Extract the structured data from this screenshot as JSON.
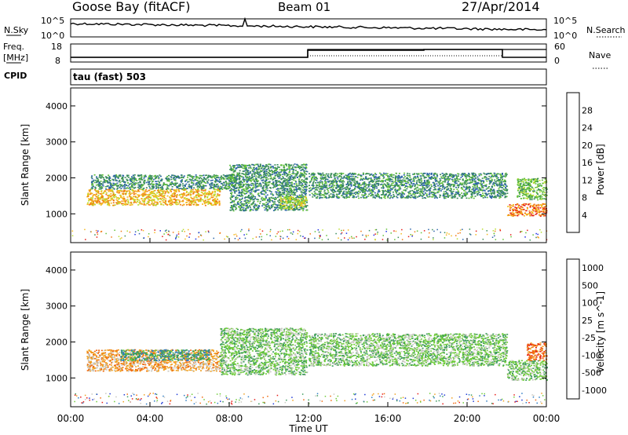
{
  "header": {
    "station": "Goose Bay (fitACF)",
    "beam": "Beam 01",
    "date": "27/Apr/2014"
  },
  "noise_panel": {
    "left_label": "N.Sky",
    "right_label": "N.Search",
    "left_ticks": [
      "10^5",
      "10^0"
    ],
    "right_ticks": [
      "10^5",
      "10^0"
    ]
  },
  "freq_panel": {
    "left_label_line1": "Freq.",
    "left_label_line2": "[MHz]",
    "right_label": "Nave",
    "left_ticks": [
      "18",
      "8"
    ],
    "right_ticks": [
      "60",
      "0"
    ]
  },
  "cpid": {
    "label": "CPID",
    "value": "tau (fast) 503"
  },
  "x_axis": {
    "label": "Time UT",
    "ticks": [
      "00:00",
      "04:00",
      "08:00",
      "12:00",
      "16:00",
      "20:00",
      "00:00"
    ]
  },
  "chart_data": [
    {
      "type": "heatmap",
      "title": "",
      "xlabel": "Time UT",
      "ylabel": "Slant Range [km]",
      "xlim": [
        0,
        24
      ],
      "ylim": [
        200,
        4500
      ],
      "yticks": [
        "1000",
        "2000",
        "3000",
        "4000"
      ],
      "colorbar": {
        "label": "Power [dB]",
        "ticks": [
          "4",
          "8",
          "12",
          "16",
          "20",
          "24",
          "28"
        ],
        "range": [
          0,
          32
        ],
        "colors": [
          "#1f2fe6",
          "#2c64a8",
          "#3a8c5a",
          "#62c03a",
          "#b9dd2e",
          "#f4b81d",
          "#f07a12",
          "#e51c17"
        ]
      },
      "bands": [
        {
          "t0": 0.8,
          "t1": 7.5,
          "r0": 1250,
          "r1": 1700,
          "value": 22
        },
        {
          "t0": 1.0,
          "t1": 8.5,
          "r0": 1700,
          "r1": 2100,
          "value": 10
        },
        {
          "t0": 8.0,
          "t1": 11.9,
          "r0": 1100,
          "r1": 2400,
          "value": 8
        },
        {
          "t0": 10.5,
          "t1": 11.9,
          "r0": 1150,
          "r1": 1500,
          "value": 18
        },
        {
          "t0": 12.0,
          "t1": 22.0,
          "r0": 1450,
          "r1": 2150,
          "value": 11
        },
        {
          "t0": 22.0,
          "t1": 24.0,
          "r0": 950,
          "r1": 1300,
          "value": 25
        },
        {
          "t0": 22.5,
          "t1": 24.0,
          "r0": 1400,
          "r1": 2000,
          "value": 14
        }
      ]
    },
    {
      "type": "heatmap",
      "title": "",
      "xlabel": "Time UT",
      "ylabel": "Slant Range [km]",
      "xlim": [
        0,
        24
      ],
      "ylim": [
        200,
        4500
      ],
      "yticks": [
        "1000",
        "2000",
        "3000",
        "4000"
      ],
      "colorbar": {
        "label": "Velocity [m s^-1]",
        "ticks": [
          "1000",
          "500",
          "100",
          "25",
          "-25",
          "-100",
          "-500",
          "-1000"
        ],
        "colors": [
          "#1f3ad6",
          "#2d7cc4",
          "#3a9a5a",
          "#6fcc3a",
          "#c8c8c0",
          "#f0a020",
          "#f06a10",
          "#e51c17"
        ]
      },
      "bands": [
        {
          "t0": 0.8,
          "t1": 7.5,
          "r0": 1200,
          "r1": 1800,
          "value": "-100"
        },
        {
          "t0": 2.5,
          "t1": 7.0,
          "r0": 1500,
          "r1": 1800,
          "value": "100"
        },
        {
          "t0": 7.5,
          "t1": 11.9,
          "r0": 1100,
          "r1": 2400,
          "value": "25"
        },
        {
          "t0": 12.0,
          "t1": 22.0,
          "r0": 1350,
          "r1": 2250,
          "value": "25"
        },
        {
          "t0": 22.0,
          "t1": 24.0,
          "r0": 950,
          "r1": 1500,
          "value": "25"
        },
        {
          "t0": 23.0,
          "t1": 24.0,
          "r0": 1500,
          "r1": 2000,
          "value": "-500"
        }
      ]
    }
  ]
}
